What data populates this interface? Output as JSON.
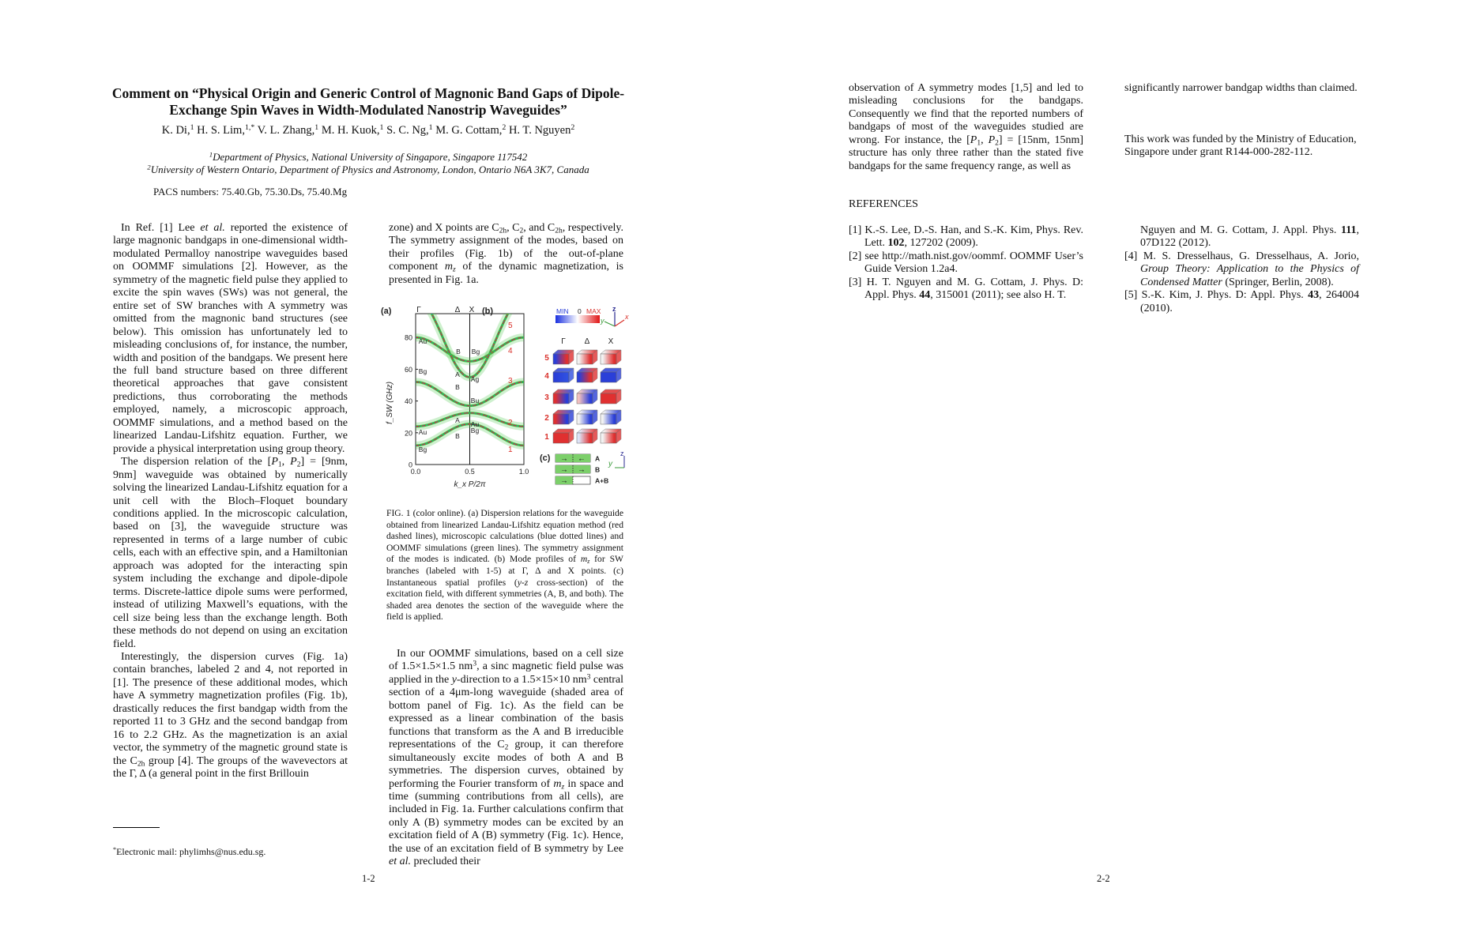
{
  "page1": {
    "title": "Comment on “Physical Origin and Generic Control of Magnonic Band Gaps of Dipole-Exchange Spin Waves in Width-Modulated Nanostrip Waveguides”",
    "authors": [
      {
        "text": "K. Di,"
      },
      {
        "text": "1",
        "style": "sup"
      },
      {
        "text": " H. S. Lim,"
      },
      {
        "text": "1,*",
        "style": "sup"
      },
      {
        "text": " V. L. Zhang,"
      },
      {
        "text": "1",
        "style": "sup"
      },
      {
        "text": " M. H. Kuok,"
      },
      {
        "text": "1",
        "style": "sup"
      },
      {
        "text": " S. C. Ng,"
      },
      {
        "text": "1",
        "style": "sup"
      },
      {
        "text": " M. G. Cottam,"
      },
      {
        "text": "2",
        "style": "sup"
      },
      {
        "text": " H. T. Nguyen"
      },
      {
        "text": "2",
        "style": "sup"
      }
    ],
    "affiliation_1": [
      {
        "text": "1",
        "style": "sup"
      },
      {
        "text": "Department of Physics, National University of Singapore, Singapore 117542"
      }
    ],
    "affiliation_2": [
      {
        "text": "2",
        "style": "sup"
      },
      {
        "text": "University of Western Ontario, Department of Physics and Astronomy, London, Ontario N6A 3K7, Canada"
      }
    ],
    "pacs": "PACS numbers: 75.40.Gb, 75.30.Ds, 75.40.Mg",
    "col1": [
      [
        {
          "text": "In Ref. [1] Lee "
        },
        {
          "text": "et al.",
          "style": "i"
        },
        {
          "text": " reported the existence of large magnonic bandgaps in one-dimensional width-modulated Permalloy nanostripe waveguides based on OOMMF simulations [2]. However, as the symmetry of the magnetic field pulse they applied to excite the spin waves (SWs) was not general, the entire set of SW branches with A symmetry was omitted from the magnonic band structures (see below). This omission has unfortunately led to misleading conclusions of, for instance, the number, width and position of the bandgaps. We present here the full band structure based on three different theoretical approaches that gave consistent predictions, thus corroborating the methods employed, namely, a microscopic approach, OOMMF simulations, and a method based on the linearized Landau-Lifshitz equation. Further, we provide a physical interpretation using group theory."
        }
      ],
      [
        {
          "text": "The dispersion relation of the ["
        },
        {
          "text": "P",
          "style": "i"
        },
        {
          "text": "1",
          "style": "sub"
        },
        {
          "text": ", "
        },
        {
          "text": "P",
          "style": "i"
        },
        {
          "text": "2",
          "style": "sub"
        },
        {
          "text": "] = [9nm, 9nm] waveguide was obtained by numerically solving the linearized Landau-Lifshitz equation for a unit cell with the Bloch–Floquet boundary conditions applied. In the microscopic calculation, based on [3], the waveguide structure was represented in terms of a large number of cubic cells, each with an effective spin, and a Hamiltonian approach was adopted for the interacting spin system including the exchange and dipole-dipole terms. Discrete-lattice dipole sums were performed, instead of utilizing Maxwell’s equations, with the cell size being less than the exchange length. Both these methods do not depend on using an excitation field."
        }
      ],
      [
        {
          "text": "Interestingly, the dispersion curves (Fig. 1a) contain branches, labeled 2 and 4, not reported in [1]. The presence of these additional modes, which have A symmetry magnetization profiles (Fig. 1b), drastically reduces the first bandgap width from the reported 11 to 3 GHz and the second bandgap from 16 to 2.2 GHz. As the magnetization is an axial vector, the symmetry of the magnetic ground state is the C"
        },
        {
          "text": "2h",
          "style": "sub"
        },
        {
          "text": " group [4]. The groups of the wavevectors at the Γ, Δ (a general point in the first Brillouin"
        }
      ]
    ],
    "col2_top": [
      [
        {
          "text": "zone) and X points are C"
        },
        {
          "text": "2h",
          "style": "sub"
        },
        {
          "text": ", C"
        },
        {
          "text": "2",
          "style": "sub"
        },
        {
          "text": ", and C"
        },
        {
          "text": "2h",
          "style": "sub"
        },
        {
          "text": ", respectively. The symmetry assignment of the modes, based on their profiles (Fig. 1b) of the out-of-plane component "
        },
        {
          "text": "m",
          "style": "i"
        },
        {
          "text": "z",
          "style": "subi"
        },
        {
          "text": " of the dynamic magnetization, is presented in Fig. 1a."
        }
      ]
    ],
    "caption": [
      {
        "text": "FIG. 1 (color online). (a) Dispersion relations for the waveguide obtained from linearized Landau-Lifshitz equation method (red dashed lines), microscopic calculations (blue dotted lines) and OOMMF simulations (green lines). The symmetry assignment of the modes is indicated. (b) Mode profiles of "
      },
      {
        "text": "m",
        "style": "i"
      },
      {
        "text": "z",
        "style": "subi"
      },
      {
        "text": " for SW branches (labeled with 1-5) at Γ, Δ and X points. (c) Instantaneous spatial profiles ("
      },
      {
        "text": "y-z",
        "style": "i"
      },
      {
        "text": " cross-section) of the excitation field, with different symmetries (A, B, and both). The shaded area denotes the section of the waveguide where the field is applied."
      }
    ],
    "col2_bottom": [
      [
        {
          "text": "In our OOMMF simulations, based on a cell size of 1.5×1.5×1.5 nm"
        },
        {
          "text": "3",
          "style": "sup"
        },
        {
          "text": ", a sinc magnetic field pulse was applied in the "
        },
        {
          "text": "y",
          "style": "i"
        },
        {
          "text": "-direction to a 1.5×15×10 nm"
        },
        {
          "text": "3",
          "style": "sup"
        },
        {
          "text": " central section of a 4μm-long waveguide (shaded area of bottom panel of Fig. 1c). As the field can be expressed as a linear combination of the basis functions that transform as the A and B irreducible representations of the C"
        },
        {
          "text": "2",
          "style": "sub"
        },
        {
          "text": " group, it can therefore simultaneously excite modes of both A and B symmetries. The dispersion curves, obtained by performing the Fourier transform of "
        },
        {
          "text": "m",
          "style": "i"
        },
        {
          "text": "z",
          "style": "subi"
        },
        {
          "text": " in space and time (summing contributions from all cells), are included in Fig. 1a. Further calculations confirm that only A (B) symmetry modes can be excited by an excitation field of A (B) symmetry (Fig. 1c). Hence, the use of an excitation field of B symmetry by Lee "
        },
        {
          "text": "et al.",
          "style": "i"
        },
        {
          "text": " precluded their"
        }
      ]
    ],
    "footnote": [
      {
        "text": "*",
        "style": "sup"
      },
      {
        "text": "Electronic mail:  phylimhs@nus.edu.sg."
      }
    ],
    "page_number": "1-2"
  },
  "figure": {
    "panel_a_label": "(a)",
    "panel_b_label": "(b)",
    "panel_c_label": "(c)",
    "top_points": [
      "Γ",
      "Δ",
      "X"
    ],
    "chart_data": {
      "type": "line",
      "xlabel": "k_x P/2π",
      "ylabel": "f_SW (GHz)",
      "xlim": [
        0,
        1
      ],
      "ylim": [
        0,
        95
      ],
      "x_ticks": [
        "0.0",
        "0.5",
        "1.0"
      ],
      "y_ticks": [
        "0",
        "20",
        "40",
        "60",
        "80"
      ],
      "methods": {
        "llg": "#d9302a",
        "microscopic": "#2a5fd0",
        "oommf": "#3cc43c"
      },
      "branches": [
        {
          "label": "1",
          "f_gamma": 12,
          "f_x": 25.5
        },
        {
          "label": "2",
          "f_gamma": 24,
          "f_x": 32.5
        },
        {
          "label": "3",
          "f_gamma": 52,
          "f_x": 37
        },
        {
          "label": "4",
          "f_gamma": 80,
          "f_x": 65
        },
        {
          "label": "5",
          "f_gamma": 105,
          "f_x": 55
        }
      ],
      "symmetry_labels": [
        "Au",
        "B",
        "Bg",
        "Bg",
        "A",
        "Ag",
        "B",
        "Bu",
        "A",
        "Au",
        "Au",
        "B",
        "Bg",
        "Bg"
      ]
    },
    "colorbar": {
      "min": "MIN",
      "zero": "0",
      "max": "MAX"
    },
    "axes_b": {
      "z": "z",
      "y": "y",
      "x": "x"
    },
    "profile_columns": [
      "Γ",
      "Δ",
      "X"
    ],
    "profile_rows": [
      "5",
      "4",
      "3",
      "2",
      "1"
    ],
    "profiles": [
      [
        [
          "#2a3fd8",
          "#e03030"
        ],
        [
          "#f2f2f2",
          "#e03030"
        ],
        [
          "#f2f2f2",
          "#e03030"
        ]
      ],
      [
        [
          "#2a3fd8",
          "#3050e0"
        ],
        [
          "#2a3fd8",
          "#e03030"
        ],
        [
          "#2a3fd8",
          "#2a3fd8"
        ]
      ],
      [
        [
          "#e03030",
          "#2a3fd8"
        ],
        [
          "#f2c0c0",
          "#2a3fd8"
        ],
        [
          "#e03030",
          "#e03030"
        ]
      ],
      [
        [
          "#e03030",
          "#2a3fd8"
        ],
        [
          "#f2f2f2",
          "#2a3fd8"
        ],
        [
          "#f2f2f2",
          "#2a3fd8"
        ]
      ],
      [
        [
          "#e03030",
          "#e03030"
        ],
        [
          "#dde4f8",
          "#e03030"
        ],
        [
          "#f2f2f2",
          "#e03030"
        ]
      ]
    ],
    "excitation": [
      {
        "label": "A",
        "left": "→",
        "right": "←",
        "right_shaded": true
      },
      {
        "label": "B",
        "left": "→",
        "right": "→",
        "right_shaded": true
      },
      {
        "label": "A+B",
        "left": "→",
        "right": "",
        "right_shaded": false
      }
    ],
    "axes_c": {
      "z": "z",
      "y": "y"
    }
  },
  "page2": {
    "col3": [
      [
        {
          "text": "observation of A symmetry modes [1,5] and led to misleading conclusions for the bandgaps. Consequently we find that the reported numbers of bandgaps of most of the waveguides studied are wrong. For instance, the ["
        },
        {
          "text": "P",
          "style": "i"
        },
        {
          "text": "1",
          "style": "sub"
        },
        {
          "text": ", "
        },
        {
          "text": "P",
          "style": "i"
        },
        {
          "text": "2",
          "style": "sub"
        },
        {
          "text": "] = [15nm, 15nm] structure has only three rather than the stated five bandgaps for the same frequency range, as well as"
        }
      ]
    ],
    "references_heading": "REFERENCES",
    "refs_col3": [
      [
        {
          "text": "[1] K.-S. Lee, D.-S. Han, and S.-K. Kim, Phys. Rev. Lett. "
        },
        {
          "text": "102",
          "style": "b"
        },
        {
          "text": ", 127202 (2009)."
        }
      ],
      [
        {
          "text": "[2] see http://math.nist.gov/oommf. OOMMF User’s Guide Version 1.2a4."
        }
      ],
      [
        {
          "text": "[3] H. T. Nguyen and M. G. Cottam, J. Phys. D: Appl. Phys. "
        },
        {
          "text": "44",
          "style": "b"
        },
        {
          "text": ", 315001 (2011); see also H. T."
        }
      ]
    ],
    "col4": [
      [
        {
          "text": "significantly narrower bandgap widths than claimed."
        }
      ]
    ],
    "funding": "This work was funded by the Ministry of Education, Singapore under grant R144-000-282-112.",
    "refs_col4_cont": [
      {
        "text": "Nguyen and M. G. Cottam, J. Appl. Phys. "
      },
      {
        "text": "111",
        "style": "b"
      },
      {
        "text": ", 07D122 (2012)."
      }
    ],
    "refs_col4": [
      [
        {
          "text": "[4] M. S. Dresselhaus, G. Dresselhaus, A. Jorio, "
        },
        {
          "text": "Group Theory: Application to the Physics of Condensed Matter",
          "style": "i"
        },
        {
          "text": " (Springer, Berlin, 2008)."
        }
      ],
      [
        {
          "text": "[5] S.-K. Kim, J. Phys. D: Appl. Phys. "
        },
        {
          "text": "43",
          "style": "b"
        },
        {
          "text": ", 264004 (2010)."
        }
      ]
    ],
    "page_number": "2-2"
  }
}
